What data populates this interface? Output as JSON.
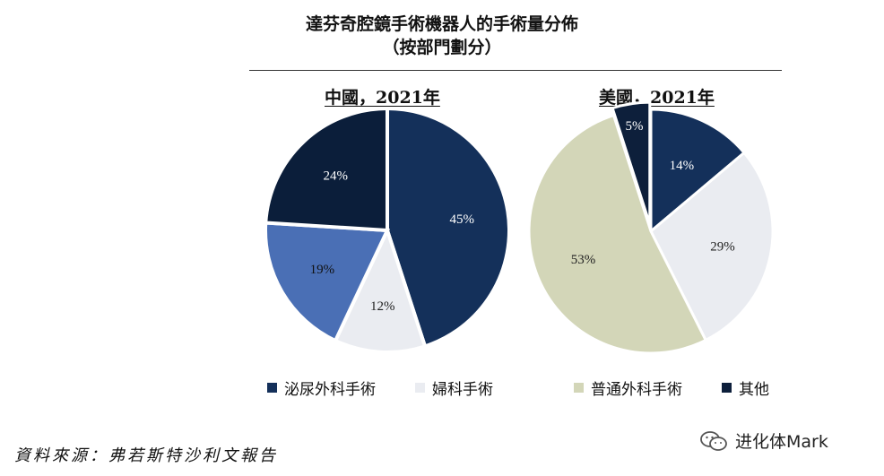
{
  "title_line1": "達芬奇腔鏡手術機器人的手術量分佈",
  "title_line2": "（按部門劃分）",
  "colors": {
    "urology": "#14305a",
    "gynecology": "#eaecf1",
    "general": "#d3d6b8",
    "other": "#0d1f3b",
    "china_other": "#0b1e3a",
    "china_19": "#4a6fb5"
  },
  "chart_data": [
    {
      "type": "pie",
      "title": "中國，2021年",
      "slices": [
        {
          "label": "泌尿外科手術",
          "value": 45,
          "text": "45%",
          "color": "#14305a",
          "text_color": "#ffffff",
          "exploded": false
        },
        {
          "label": "婦科手術",
          "value": 12,
          "text": "12%",
          "color": "#eaecf1",
          "text_color": "#222222",
          "exploded": false
        },
        {
          "label": "",
          "value": 19,
          "text": "19%",
          "color": "#4a6fb5",
          "text_color": "#111111",
          "exploded": false
        },
        {
          "label": "",
          "value": 24,
          "text": "24%",
          "color": "#0b1e3a",
          "text_color": "#ffffff",
          "exploded": false
        }
      ]
    },
    {
      "type": "pie",
      "title": "美國，2021年",
      "slices": [
        {
          "label": "泌尿外科手術",
          "value": 14,
          "text": "14%",
          "color": "#14305a",
          "text_color": "#ffffff",
          "exploded": false
        },
        {
          "label": "婦科手術",
          "value": 29,
          "text": "29%",
          "color": "#eaecf1",
          "text_color": "#222222",
          "exploded": false
        },
        {
          "label": "普通外科手術",
          "value": 53,
          "text": "53%",
          "color": "#d3d6b8",
          "text_color": "#222222",
          "exploded": false
        },
        {
          "label": "其他",
          "value": 5,
          "text": "5%",
          "color": "#0d1f3b",
          "text_color": "#ffffff",
          "exploded": true
        }
      ]
    }
  ],
  "legend_left": [
    {
      "label": "泌尿外科手術",
      "color": "#14305a"
    },
    {
      "label": "婦科手術",
      "color": "#eaecf1"
    }
  ],
  "legend_right": [
    {
      "label": "普通外科手術",
      "color": "#d3d6b8"
    },
    {
      "label": "其他",
      "color": "#0d1f3b"
    }
  ],
  "source": "資料來源：弗若斯特沙利文報告",
  "watermark": "进化体Mark",
  "watermark_icon": "wechat-icon"
}
